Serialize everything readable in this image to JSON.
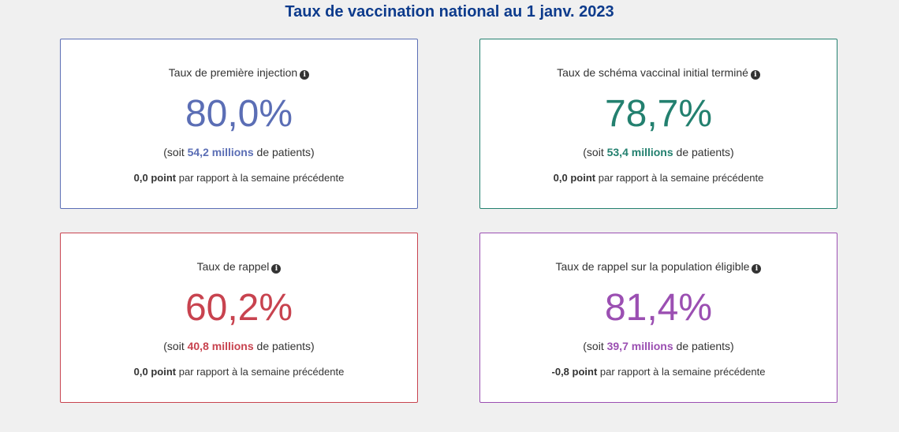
{
  "title": "Taux de vaccination national au 1 janv. 2023",
  "colors": {
    "title": "#0d3b8c",
    "card1": "#5b6eb5",
    "card2": "#23806f",
    "card3": "#c8434f",
    "card4": "#9b4fb2"
  },
  "patients_prefix": "(soit ",
  "patients_suffix": " de patients)",
  "change_suffix": " par rapport à la semaine précédente",
  "cards": [
    {
      "label": "Taux de première injection",
      "info_icon": "info-circle-icon",
      "value": "80,0%",
      "patients": "54,2 millions",
      "change": "0,0 point"
    },
    {
      "label": "Taux de schéma vaccinal initial terminé",
      "info_icon": "info-circle-icon",
      "value": "78,7%",
      "patients": "53,4 millions",
      "change": "0,0 point"
    },
    {
      "label": "Taux de rappel",
      "info_icon": "info-circle-icon",
      "value": "60,2%",
      "patients": "40,8 millions",
      "change": "0,0 point"
    },
    {
      "label": "Taux de rappel sur la population éligible",
      "info_icon": "info-circle-icon",
      "value": "81,4%",
      "patients": "39,7 millions",
      "change": "-0,8 point"
    }
  ]
}
